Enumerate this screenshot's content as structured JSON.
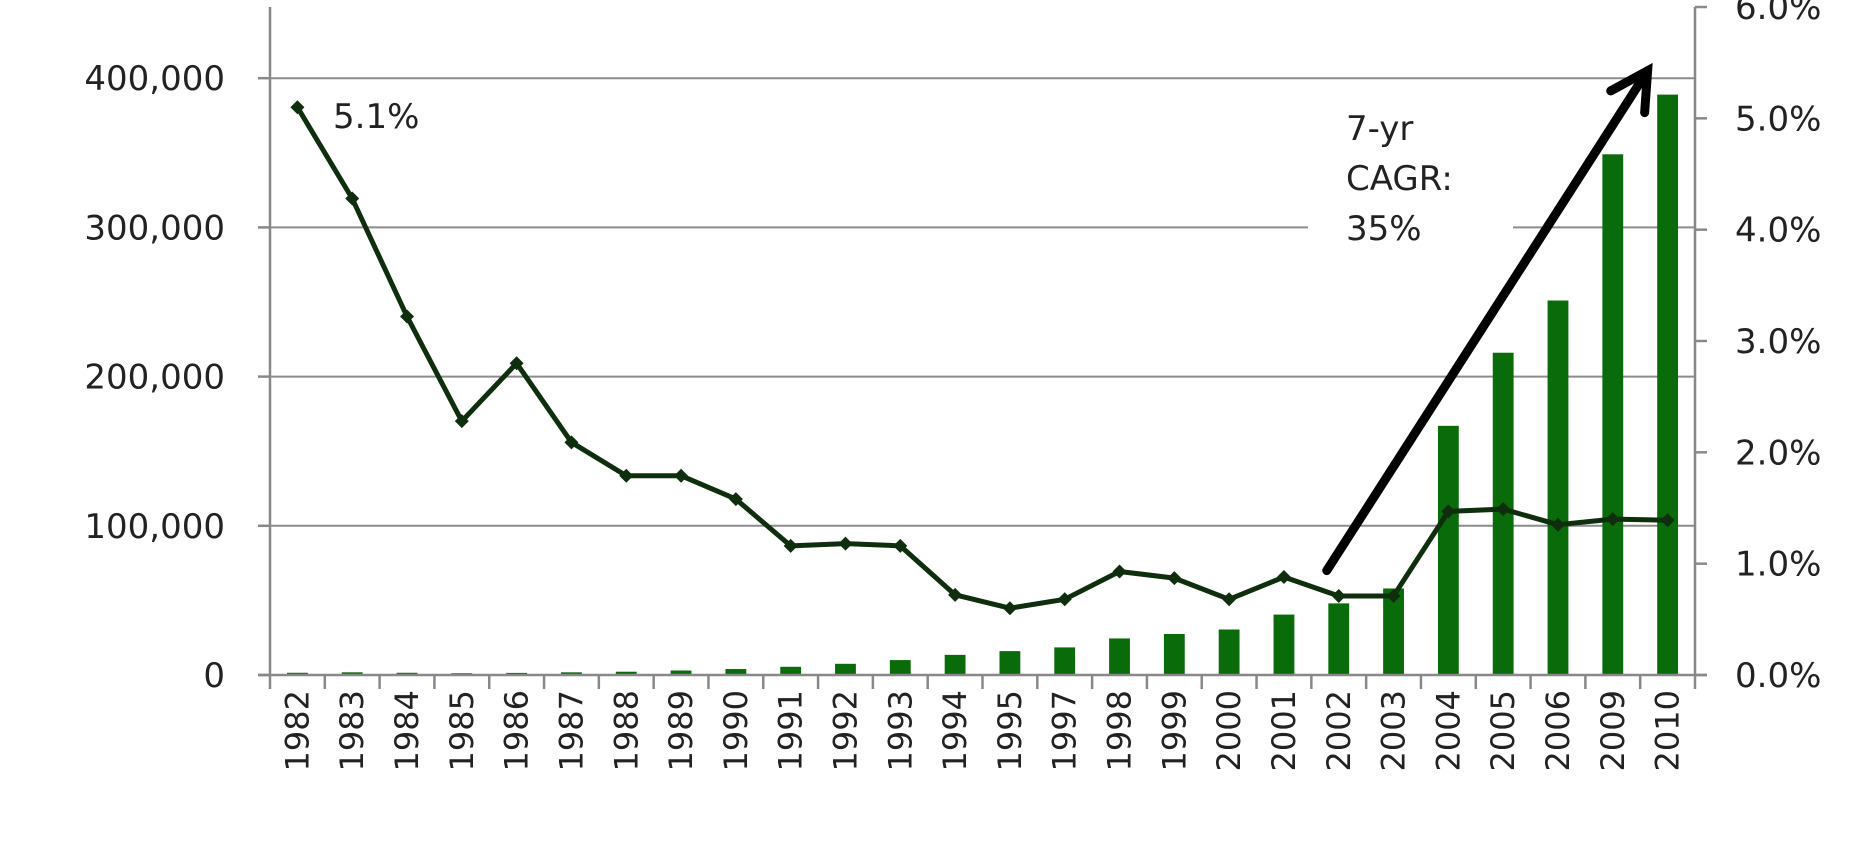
{
  "chart_data": {
    "type": "bar",
    "title": "",
    "xlabel": "",
    "ylabel": "",
    "categories": [
      "1982",
      "1983",
      "1984",
      "1985",
      "1986",
      "1987",
      "1988",
      "1989",
      "1990",
      "1991",
      "1992",
      "1993",
      "1994",
      "1995",
      "1997",
      "1998",
      "1999",
      "2000",
      "2001",
      "2002",
      "2003",
      "2004",
      "2005",
      "2006",
      "2009",
      "2010"
    ],
    "ylim": [
      0,
      450000
    ],
    "ylim_right": [
      0,
      0.06
    ],
    "y_ticks": [
      {
        "value": 0,
        "label": "0"
      },
      {
        "value": 100000,
        "label": "100,000"
      },
      {
        "value": 200000,
        "label": "200,000"
      },
      {
        "value": 300000,
        "label": "300,000"
      },
      {
        "value": 400000,
        "label": "400,000"
      }
    ],
    "y2_ticks": [
      {
        "value": 0.0,
        "label": "0.0%"
      },
      {
        "value": 0.01,
        "label": "1.0%"
      },
      {
        "value": 0.02,
        "label": "2.0%"
      },
      {
        "value": 0.03,
        "label": "3.0%"
      },
      {
        "value": 0.04,
        "label": "4.0%"
      },
      {
        "value": 0.05,
        "label": "5.0%"
      },
      {
        "value": 0.06,
        "label": "6.0%"
      }
    ],
    "grid": true,
    "series": [
      {
        "type": "bar",
        "axis": "left",
        "color": "#0a6b0a",
        "values": [
          1500,
          1800,
          1500,
          1200,
          1400,
          1800,
          2200,
          3000,
          4000,
          5500,
          7500,
          10000,
          13500,
          16000,
          18500,
          24500,
          27500,
          30500,
          40500,
          48000,
          58000,
          167000,
          216000,
          251000,
          349000,
          389000
        ]
      },
      {
        "type": "line",
        "axis": "right",
        "color": "#0e2e0e",
        "marker": "diamond",
        "values": [
          0.051,
          0.0428,
          0.0322,
          0.0228,
          0.028,
          0.0209,
          0.0179,
          0.0179,
          0.0158,
          0.0116,
          0.0118,
          0.0116,
          0.0072,
          0.006,
          0.0068,
          0.0093,
          0.0087,
          0.0068,
          0.0088,
          0.0071,
          0.0071,
          0.0147,
          0.0149,
          0.0135,
          0.014,
          0.0139
        ]
      }
    ],
    "annotations": [
      {
        "id": "start_pct",
        "text": "5.1%"
      },
      {
        "id": "cagr",
        "lines": [
          "7-yr",
          "CAGR:",
          "35%"
        ]
      }
    ],
    "arrow": {
      "from_category": "2002",
      "from_value": 70000,
      "to_category": "2010",
      "to_value": 405000
    }
  }
}
